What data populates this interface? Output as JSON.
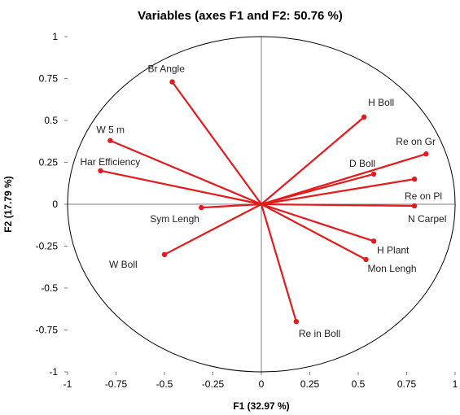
{
  "chart_data": {
    "type": "scatter",
    "subtype": "correlation-circle",
    "title": "Variables (axes F1 and F2: 50.76 %)",
    "xlabel": "F1 (32.97 %)",
    "ylabel": "F2 (17.79 %)",
    "xlim": [
      -1,
      1
    ],
    "ylim": [
      -1,
      1
    ],
    "xticks": [
      "-1",
      "-0.75",
      "-0.5",
      "-0.25",
      "0",
      "0.25",
      "0.5",
      "0.75",
      "1"
    ],
    "yticks": [
      "1",
      "0.75",
      "0.5",
      "0.25",
      "0",
      "-0.25",
      "-0.5",
      "-0.75",
      "-1"
    ],
    "grid": false,
    "vector_color": "#e41a1c",
    "axis_color": "#7f7f7f",
    "variables": [
      {
        "label": "Br Angle",
        "x": -0.46,
        "y": 0.73
      },
      {
        "label": "W 5 m",
        "x": -0.78,
        "y": 0.38
      },
      {
        "label": "Har Efficiency",
        "x": -0.83,
        "y": 0.2
      },
      {
        "label": "Sym Lengh",
        "x": -0.31,
        "y": -0.02
      },
      {
        "label": "W Boll",
        "x": -0.5,
        "y": -0.3
      },
      {
        "label": "H Boll",
        "x": 0.53,
        "y": 0.52
      },
      {
        "label": "Re on Gr",
        "x": 0.85,
        "y": 0.3
      },
      {
        "label": "D Boll",
        "x": 0.58,
        "y": 0.18
      },
      {
        "label": "Re on Pl",
        "x": 0.79,
        "y": 0.15
      },
      {
        "label": "N Carpel",
        "x": 0.79,
        "y": -0.01
      },
      {
        "label": "H Plant",
        "x": 0.58,
        "y": -0.22
      },
      {
        "label": "Mon Lengh",
        "x": 0.54,
        "y": -0.33
      },
      {
        "label": "Re in Boll",
        "x": 0.18,
        "y": -0.7
      }
    ]
  }
}
